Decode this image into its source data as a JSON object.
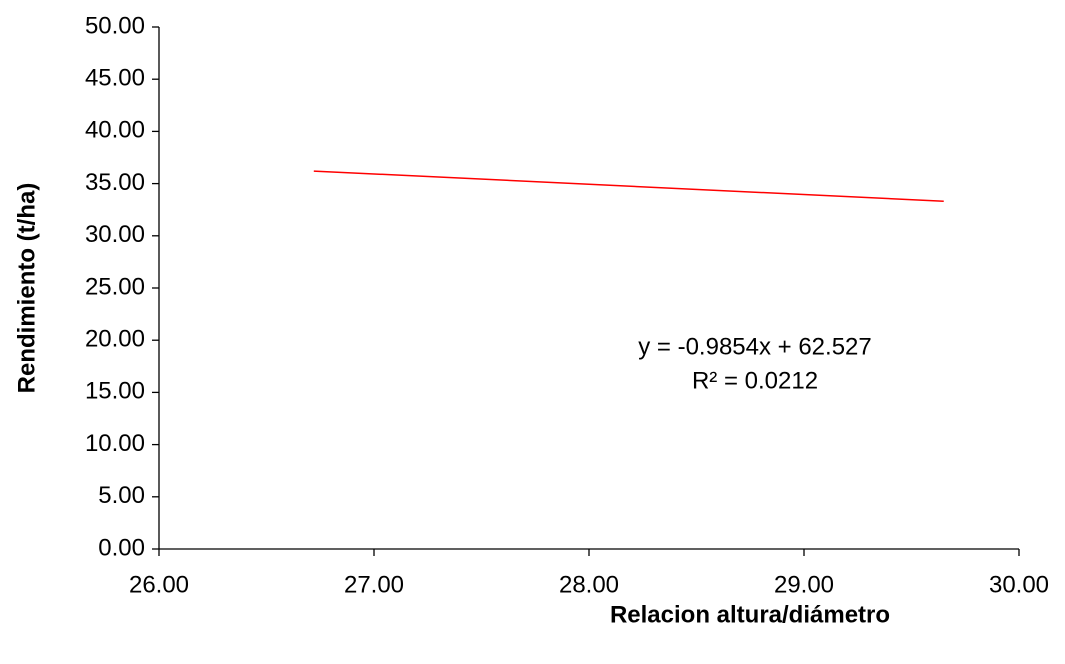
{
  "chart_data": {
    "type": "line",
    "x_label": "Relacion altura/diámetro",
    "y_label": "Rendimiento (t/ha)",
    "annotations": [
      "y = -0.9854x + 62.527",
      "R² = 0.0212"
    ],
    "x": [
      26.72,
      29.65
    ],
    "series": [
      {
        "color": "#ff0000",
        "values": [
          36.2,
          33.31
        ]
      }
    ],
    "xlim": [
      26,
      30
    ],
    "xticks": [
      {
        "value": 26,
        "label": "26.00"
      },
      {
        "value": 27,
        "label": "27.00"
      },
      {
        "value": 28,
        "label": "28.00"
      },
      {
        "value": 29,
        "label": "29.00"
      },
      {
        "value": 30,
        "label": "30.00"
      }
    ],
    "ylim": [
      0,
      50
    ],
    "yticks": [
      {
        "value": 0,
        "label": "0.00"
      },
      {
        "value": 5,
        "label": "5.00"
      },
      {
        "value": 10,
        "label": "10.00"
      },
      {
        "value": 15,
        "label": "15.00"
      },
      {
        "value": 20,
        "label": "20.00"
      },
      {
        "value": 25,
        "label": "25.00"
      },
      {
        "value": 30,
        "label": "30.00"
      },
      {
        "value": 35,
        "label": "35.00"
      },
      {
        "value": 40,
        "label": "40.00"
      },
      {
        "value": 45,
        "label": "45.00"
      },
      {
        "value": 50,
        "label": "50.00"
      }
    ],
    "grid": false
  }
}
